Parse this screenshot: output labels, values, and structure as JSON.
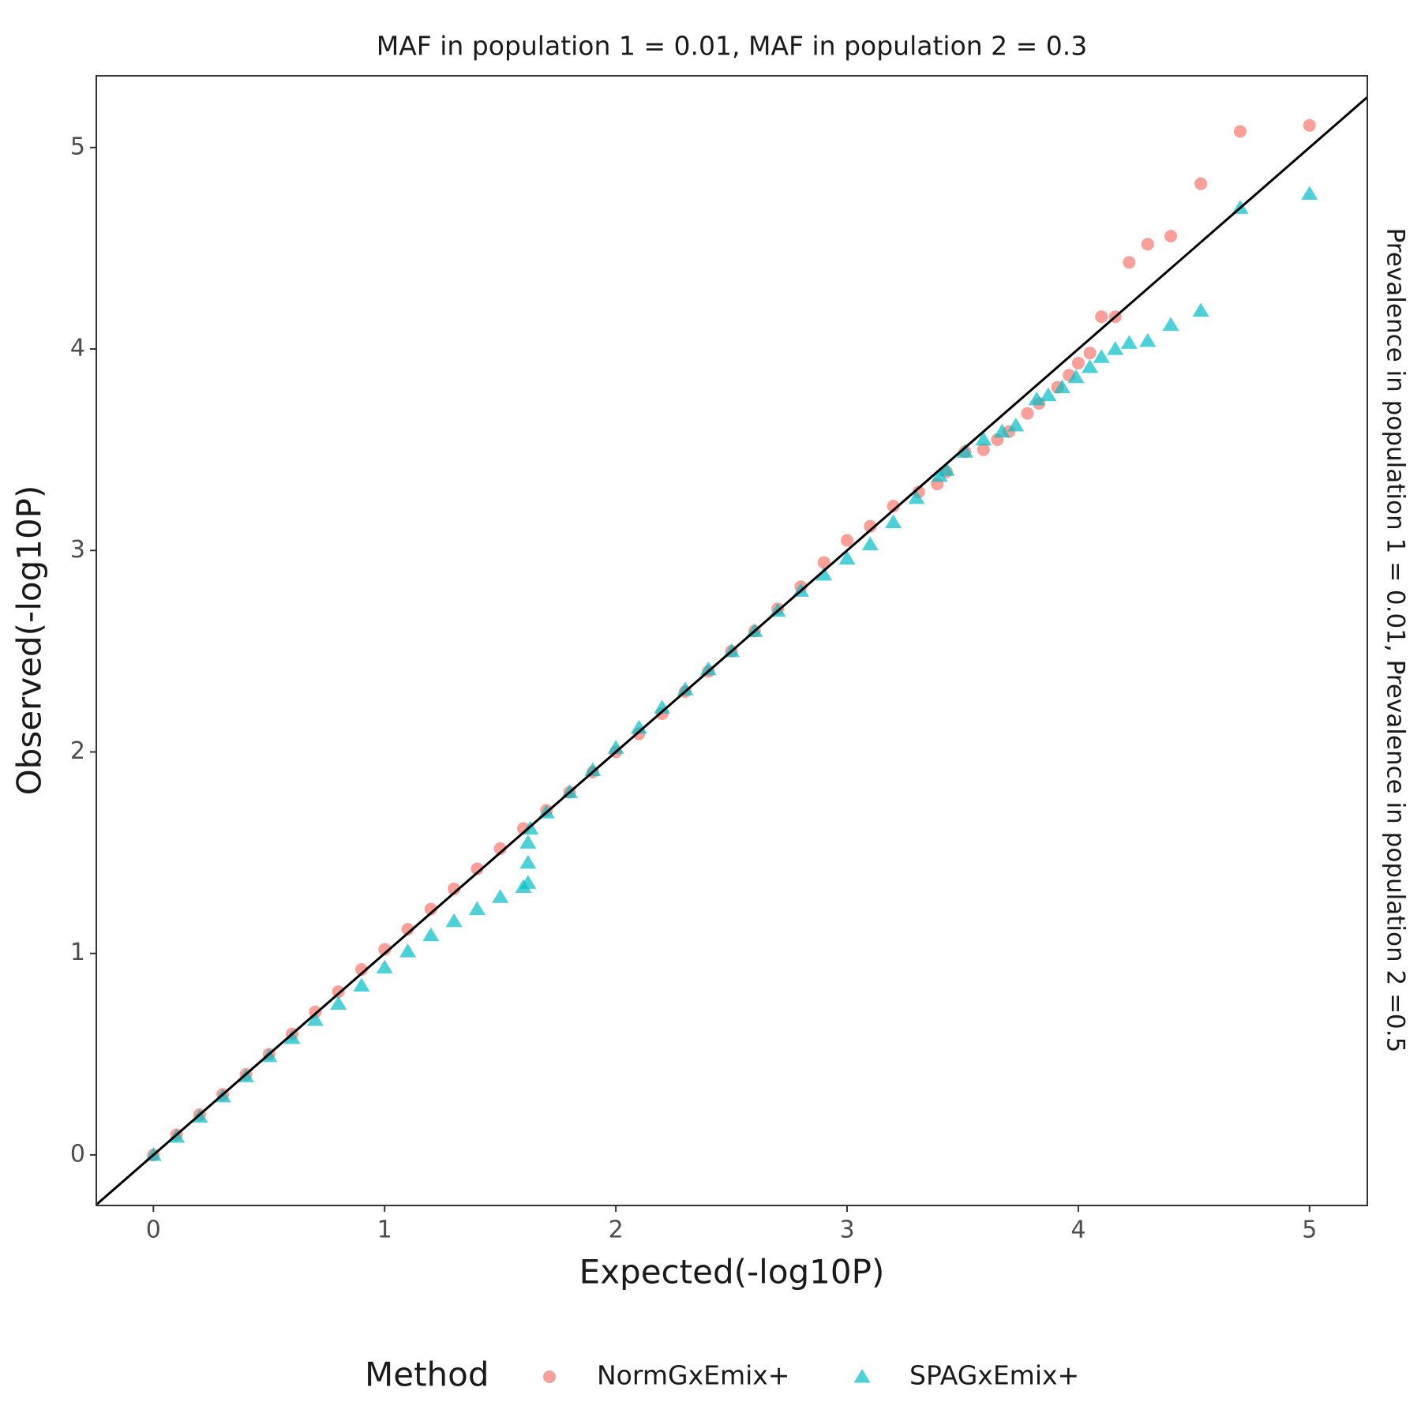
{
  "chart_data": {
    "type": "scatter",
    "title": "MAF in population 1 = 0.01, MAF in population 2 = 0.3",
    "side_label": "Prevalence in population 1 = 0.01, Prevalence in population 2 =0.5",
    "x_label": "Expected(-log10P)",
    "y_label": "Observed(-log10P)",
    "legend_title": "Method",
    "legend_position": "bottom",
    "grid": false,
    "reference_line": "y=x",
    "xlim": [
      -0.247,
      5.25
    ],
    "ylim": [
      -0.251,
      5.356
    ],
    "xticks": [
      0,
      1,
      2,
      3,
      4,
      5
    ],
    "yticks": [
      0,
      1,
      2,
      3,
      4,
      5
    ],
    "series": [
      {
        "name": "NormGxEmix+",
        "color": "#F8766D",
        "marker": "circle",
        "x": [
          0,
          0.1,
          0.2,
          0.3,
          0.4,
          0.5,
          0.6,
          0.7,
          0.8,
          0.9,
          1.0,
          1.1,
          1.2,
          1.3,
          1.4,
          1.5,
          1.6,
          1.7,
          1.8,
          1.9,
          2.0,
          2.1,
          2.2,
          2.3,
          2.4,
          2.5,
          2.6,
          2.7,
          2.8,
          2.9,
          3.0,
          3.1,
          3.2,
          3.31,
          3.39,
          3.43,
          3.51,
          3.59,
          3.65,
          3.7,
          3.78,
          3.83,
          3.91,
          3.96,
          4.0,
          4.05,
          4.1,
          4.16,
          4.22,
          4.3,
          4.4,
          4.53,
          4.7,
          5.0
        ],
        "values": [
          0,
          0.1,
          0.2,
          0.3,
          0.4,
          0.5,
          0.6,
          0.71,
          0.81,
          0.92,
          1.02,
          1.12,
          1.22,
          1.32,
          1.42,
          1.52,
          1.62,
          1.71,
          1.8,
          1.9,
          2.0,
          2.09,
          2.19,
          2.3,
          2.4,
          2.5,
          2.6,
          2.71,
          2.82,
          2.94,
          3.05,
          3.12,
          3.22,
          3.29,
          3.33,
          3.39,
          3.49,
          3.5,
          3.55,
          3.59,
          3.68,
          3.73,
          3.81,
          3.87,
          3.93,
          3.98,
          4.16,
          4.16,
          4.43,
          4.52,
          4.56,
          4.82,
          5.08,
          5.11
        ]
      },
      {
        "name": "SPAGxEmix+",
        "color": "#00BFC4",
        "marker": "triangle",
        "x": [
          0,
          0.1,
          0.2,
          0.3,
          0.4,
          0.5,
          0.6,
          0.7,
          0.8,
          0.9,
          1.0,
          1.1,
          1.2,
          1.3,
          1.4,
          1.5,
          1.6,
          1.62,
          1.62,
          1.62,
          1.63,
          1.7,
          1.8,
          1.9,
          2.0,
          2.1,
          2.2,
          2.3,
          2.4,
          2.5,
          2.6,
          2.7,
          2.8,
          2.9,
          3.0,
          3.1,
          3.2,
          3.3,
          3.4,
          3.43,
          3.51,
          3.59,
          3.67,
          3.73,
          3.82,
          3.87,
          3.93,
          3.99,
          4.05,
          4.1,
          4.16,
          4.22,
          4.3,
          4.4,
          4.53,
          4.7,
          5.0
        ],
        "values": [
          0,
          0.09,
          0.19,
          0.29,
          0.39,
          0.49,
          0.58,
          0.67,
          0.75,
          0.84,
          0.93,
          1.01,
          1.09,
          1.16,
          1.22,
          1.28,
          1.33,
          1.35,
          1.45,
          1.55,
          1.62,
          1.7,
          1.8,
          1.91,
          2.02,
          2.12,
          2.22,
          2.31,
          2.41,
          2.5,
          2.6,
          2.7,
          2.8,
          2.88,
          2.96,
          3.03,
          3.14,
          3.26,
          3.37,
          3.4,
          3.49,
          3.55,
          3.59,
          3.62,
          3.75,
          3.77,
          3.81,
          3.86,
          3.91,
          3.96,
          4.0,
          4.03,
          4.04,
          4.12,
          4.19,
          4.7,
          4.77
        ]
      }
    ]
  }
}
